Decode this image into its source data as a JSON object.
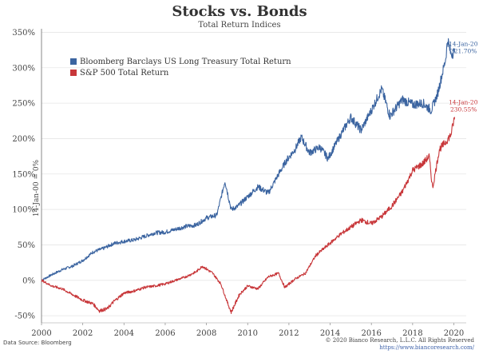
{
  "chart_data": {
    "type": "line",
    "title": "Stocks vs. Bonds",
    "subtitle": "Total Return Indices",
    "xlabel": "",
    "ylabel": "",
    "xlim": [
      2000,
      2020.6
    ],
    "ylim": [
      -60,
      355
    ],
    "x_ticks": [
      "2000",
      "2002",
      "2004",
      "2006",
      "2008",
      "2010",
      "2012",
      "2014",
      "2016",
      "2018",
      "2020"
    ],
    "y_ticks": [
      "-50%",
      "0%",
      "50%",
      "100%",
      "150%",
      "200%",
      "250%",
      "300%",
      "350%"
    ],
    "grid": "horizontal",
    "legend_position": "top-left",
    "vertical_marker": {
      "x": 2000.0,
      "label": "14-Jan-00 = 0%"
    },
    "series": [
      {
        "name": "Bloomberg Barclays US Long Treasury Total Return",
        "color": "#3b64a0",
        "end_date": "14-Jan-20",
        "end_label": "321.70%",
        "x": [
          2000.0,
          2000.5,
          2001.0,
          2001.5,
          2002.0,
          2002.5,
          2003.0,
          2003.5,
          2004.0,
          2004.5,
          2005.0,
          2005.5,
          2006.0,
          2006.5,
          2007.0,
          2007.5,
          2008.0,
          2008.5,
          2008.9,
          2009.2,
          2009.5,
          2010.0,
          2010.5,
          2011.0,
          2011.5,
          2011.9,
          2012.3,
          2012.6,
          2013.0,
          2013.5,
          2013.9,
          2014.5,
          2015.0,
          2015.5,
          2016.0,
          2016.5,
          2016.9,
          2017.5,
          2018.0,
          2018.5,
          2018.9,
          2019.2,
          2019.6,
          2019.7,
          2019.85,
          2020.04
        ],
        "y": [
          0,
          8,
          15,
          20,
          28,
          40,
          45,
          52,
          55,
          57,
          62,
          67,
          68,
          72,
          76,
          78,
          88,
          92,
          140,
          100,
          104,
          118,
          132,
          123,
          150,
          170,
          185,
          202,
          180,
          188,
          172,
          205,
          230,
          212,
          240,
          270,
          232,
          255,
          248,
          250,
          240,
          262,
          312,
          340,
          320,
          321.7
        ]
      },
      {
        "name": "S&P 500 Total Return",
        "color": "#c8373a",
        "end_date": "14-Jan-20",
        "end_label": "230.55%",
        "x": [
          2000.0,
          2000.5,
          2001.0,
          2001.5,
          2002.0,
          2002.5,
          2002.8,
          2003.2,
          2003.5,
          2004.0,
          2004.5,
          2005.0,
          2005.5,
          2006.0,
          2006.5,
          2007.0,
          2007.5,
          2007.8,
          2008.3,
          2008.7,
          2009.0,
          2009.2,
          2009.6,
          2010.0,
          2010.5,
          2011.0,
          2011.5,
          2011.8,
          2012.3,
          2012.8,
          2013.3,
          2013.9,
          2014.5,
          2015.0,
          2015.5,
          2016.0,
          2016.5,
          2017.0,
          2017.5,
          2018.0,
          2018.5,
          2018.8,
          2018.97,
          2019.3,
          2019.6,
          2019.85,
          2020.04
        ],
        "y": [
          0,
          -8,
          -12,
          -20,
          -28,
          -33,
          -43,
          -40,
          -30,
          -18,
          -15,
          -10,
          -8,
          -5,
          0,
          5,
          12,
          20,
          10,
          -5,
          -30,
          -45,
          -20,
          -8,
          -12,
          5,
          10,
          -10,
          2,
          10,
          35,
          50,
          65,
          75,
          85,
          80,
          90,
          105,
          125,
          155,
          165,
          175,
          130,
          185,
          195,
          205,
          230.55
        ]
      }
    ]
  },
  "footer": {
    "source": "Data Source: Bloomberg",
    "copyright": "© 2020 Bianco Research, L.L.C. All Rights Reserved",
    "url": "https://www.biancoresearch.com/"
  }
}
